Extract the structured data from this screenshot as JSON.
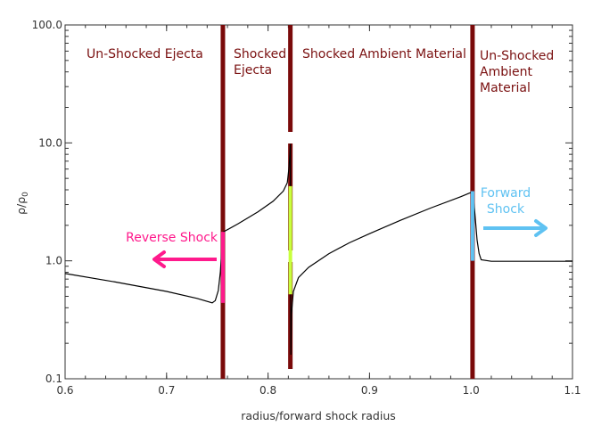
{
  "colors": {
    "boundary": "#7a0a0a",
    "region_text": "#7a1010",
    "curve": "#000000",
    "reverse_shock": "#ff1a8c",
    "contact": "#c8ff3c",
    "forward_shock": "#5fc2f2",
    "axis": "#333333"
  },
  "chart_data": {
    "type": "line",
    "xlabel": "radius/forward shock radius",
    "ylabel_main": "ρ/ρ",
    "ylabel_sub": "0",
    "x_scale": "linear",
    "y_scale": "log",
    "xlim": [
      0.6,
      1.1
    ],
    "ylim": [
      0.1,
      100.0
    ],
    "x_ticks": [
      0.6,
      0.7,
      0.8,
      0.9,
      1.0,
      1.1
    ],
    "x_tick_labels": [
      "0.6",
      "0.7",
      "0.8",
      "0.9",
      "1.0",
      "1.1"
    ],
    "y_ticks": [
      0.1,
      1.0,
      10.0,
      100.0
    ],
    "y_tick_labels": [
      "0.1",
      "1.0",
      "10.0",
      "100.0"
    ],
    "grid": false,
    "series": [
      {
        "points": [
          [
            0.6,
            0.78
          ],
          [
            0.65,
            0.66
          ],
          [
            0.7,
            0.55
          ],
          [
            0.73,
            0.48
          ],
          [
            0.745,
            0.44
          ],
          [
            0.748,
            0.46
          ],
          [
            0.751,
            0.56
          ],
          [
            0.753,
            0.8
          ],
          [
            0.754,
            1.1
          ],
          [
            0.755,
            1.55
          ],
          [
            0.756,
            1.76
          ],
          [
            0.77,
            2.05
          ],
          [
            0.79,
            2.6
          ],
          [
            0.805,
            3.2
          ],
          [
            0.815,
            3.9
          ],
          [
            0.819,
            4.6
          ],
          [
            0.8205,
            6.0
          ],
          [
            0.8215,
            8.0
          ],
          [
            0.822,
            9.8
          ],
          [
            0.8222,
            0.7
          ],
          [
            0.8225,
            0.16
          ],
          [
            0.823,
            0.35
          ],
          [
            0.825,
            0.55
          ],
          [
            0.83,
            0.72
          ],
          [
            0.84,
            0.88
          ],
          [
            0.86,
            1.15
          ],
          [
            0.88,
            1.42
          ],
          [
            0.9,
            1.7
          ],
          [
            0.93,
            2.2
          ],
          [
            0.96,
            2.8
          ],
          [
            0.99,
            3.5
          ],
          [
            1.0,
            3.8
          ],
          [
            1.002,
            3.7
          ],
          [
            1.004,
            2.4
          ],
          [
            1.006,
            1.5
          ],
          [
            1.008,
            1.15
          ],
          [
            1.01,
            1.02
          ],
          [
            1.02,
            0.99
          ],
          [
            1.05,
            0.99
          ],
          [
            1.1,
            0.99
          ]
        ]
      }
    ],
    "boundaries": [
      {
        "x": 0.7555,
        "type": "solid"
      },
      {
        "x": 0.822,
        "type": "dashed"
      },
      {
        "x": 1.0015,
        "type": "solid"
      }
    ],
    "region_labels": [
      {
        "lines": [
          "Un-Shocked Ejecta"
        ]
      },
      {
        "lines": [
          "Shocked",
          "Ejecta"
        ]
      },
      {
        "lines": [
          "Shocked Ambient Material"
        ]
      },
      {
        "lines": [
          "Un-Shocked",
          "Ambient",
          "Material"
        ]
      }
    ],
    "shock_markers": [
      {
        "x": 0.7555,
        "y_low": 0.44,
        "y_high": 1.76,
        "color_key": "reverse_shock"
      },
      {
        "x": 0.822,
        "y_low": 0.52,
        "y_high": 4.3,
        "color_key": "contact"
      },
      {
        "x": 1.0015,
        "y_low": 1.0,
        "y_high": 3.9,
        "color_key": "forward_shock"
      }
    ],
    "annotations": [
      {
        "lines": [
          "Reverse Shock"
        ],
        "color_key": "reverse_shock",
        "arrow": "left"
      },
      {
        "lines": [
          "Forward",
          "Shock"
        ],
        "color_key": "forward_shock",
        "arrow": "right"
      }
    ]
  }
}
